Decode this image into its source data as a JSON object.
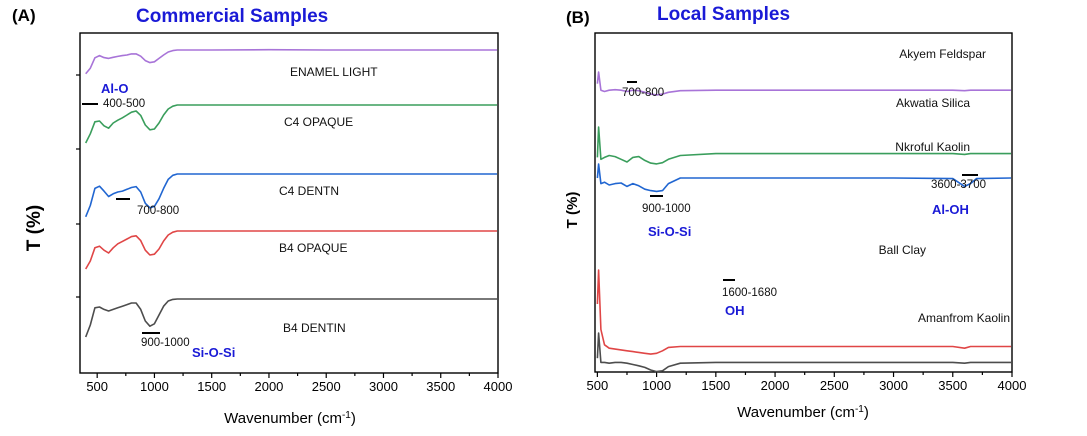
{
  "chart_data": [
    {
      "type": "line",
      "panel": "(A)",
      "title": "Commercial Samples",
      "xlabel": "Wavenumber (cm",
      "xlabel_sup": "-1",
      "xlabel_end": ")",
      "ylabel": "T (%)",
      "xlim": [
        350,
        4000
      ],
      "xticks": [
        500,
        1000,
        1500,
        2000,
        2500,
        3000,
        3500,
        4000
      ],
      "xticklabels": [
        "500",
        "1000",
        "1500",
        "2000",
        "2500",
        "3000",
        "3500",
        "4000"
      ],
      "series": [
        {
          "name": "ENAMEL LIGHT",
          "color": "#a874d8",
          "x": [
            400,
            440,
            480,
            520,
            560,
            600,
            640,
            680,
            720,
            760,
            800,
            840,
            880,
            920,
            960,
            1000,
            1040,
            1080,
            1120,
            1160,
            1200,
            1250,
            1300,
            1500,
            2000,
            2500,
            3000,
            3500,
            4000
          ],
          "y": [
            0.15,
            0.35,
            0.72,
            0.8,
            0.73,
            0.7,
            0.74,
            0.77,
            0.8,
            0.82,
            0.86,
            0.86,
            0.78,
            0.62,
            0.55,
            0.58,
            0.7,
            0.82,
            0.93,
            0.98,
            1.0,
            1.0,
            1.0,
            1.0,
            1.01,
            1.0,
            1.0,
            1.0,
            1.0
          ]
        },
        {
          "name": "C4 OPAQUE",
          "color": "#3a9e5c",
          "x": [
            400,
            440,
            480,
            520,
            560,
            600,
            640,
            680,
            720,
            760,
            800,
            840,
            880,
            920,
            960,
            1000,
            1040,
            1080,
            1120,
            1160,
            1200,
            1250,
            1300,
            1500,
            2000,
            2500,
            3000,
            3500,
            4000
          ],
          "y": [
            0.05,
            0.28,
            0.58,
            0.6,
            0.48,
            0.42,
            0.55,
            0.62,
            0.68,
            0.75,
            0.82,
            0.85,
            0.74,
            0.5,
            0.38,
            0.4,
            0.55,
            0.75,
            0.9,
            0.97,
            1.0,
            1.0,
            1.0,
            1.0,
            1.0,
            1.0,
            1.0,
            1.0,
            1.0
          ]
        },
        {
          "name": "C4 DENTN",
          "color": "#2166d1",
          "x": [
            400,
            440,
            480,
            520,
            560,
            600,
            640,
            680,
            720,
            760,
            800,
            840,
            880,
            920,
            960,
            1000,
            1040,
            1080,
            1120,
            1160,
            1200,
            1250,
            1300,
            1500,
            2000,
            2500,
            3000,
            3500,
            4000
          ],
          "y": [
            0.05,
            0.3,
            0.68,
            0.73,
            0.62,
            0.5,
            0.56,
            0.6,
            0.62,
            0.66,
            0.7,
            0.72,
            0.6,
            0.35,
            0.25,
            0.28,
            0.45,
            0.68,
            0.88,
            0.97,
            1.0,
            1.0,
            1.0,
            1.0,
            1.0,
            1.0,
            1.0,
            1.0,
            1.0
          ]
        },
        {
          "name": "B4 OPAQUE",
          "color": "#e04646",
          "x": [
            400,
            440,
            480,
            520,
            560,
            600,
            640,
            680,
            720,
            760,
            800,
            840,
            880,
            920,
            960,
            1000,
            1040,
            1080,
            1120,
            1160,
            1200,
            1250,
            1300,
            1500,
            2000,
            2500,
            3000,
            3500,
            4000
          ],
          "y": [
            0.05,
            0.25,
            0.58,
            0.62,
            0.52,
            0.45,
            0.58,
            0.68,
            0.74,
            0.8,
            0.86,
            0.88,
            0.76,
            0.52,
            0.4,
            0.42,
            0.55,
            0.75,
            0.9,
            0.97,
            1.0,
            1.0,
            1.0,
            1.0,
            1.0,
            1.0,
            1.0,
            1.0,
            1.0
          ]
        },
        {
          "name": "B4 DENTIN",
          "color": "#4d4d4d",
          "x": [
            400,
            440,
            480,
            520,
            560,
            600,
            640,
            680,
            720,
            760,
            800,
            840,
            880,
            920,
            960,
            1000,
            1040,
            1080,
            1120,
            1160,
            1200,
            1250,
            1300,
            1500,
            2000,
            2500,
            3000,
            3500,
            4000
          ],
          "y": [
            0.05,
            0.35,
            0.78,
            0.8,
            0.74,
            0.7,
            0.74,
            0.78,
            0.82,
            0.86,
            0.9,
            0.9,
            0.74,
            0.45,
            0.32,
            0.38,
            0.6,
            0.82,
            0.95,
            0.99,
            1.0,
            1.0,
            1.0,
            1.0,
            1.0,
            1.0,
            1.0,
            1.0,
            1.0
          ]
        }
      ],
      "annotations": [
        {
          "text": "Al-O",
          "style": "blue",
          "x": 450
        },
        {
          "text": "400-500",
          "style": "plain",
          "x": 450
        },
        {
          "text": "700-800",
          "style": "plain",
          "x": 750
        },
        {
          "text": "900-1000",
          "style": "plain",
          "x": 950
        },
        {
          "text": "Si-O-Si",
          "style": "blue",
          "x": 1250
        }
      ]
    },
    {
      "type": "line",
      "panel": "(B)",
      "title": "Local Samples",
      "xlabel": "Wavenumber (cm",
      "xlabel_sup": "-1",
      "xlabel_end": ")",
      "ylabel": "T (%)",
      "xlim": [
        480,
        4000
      ],
      "xticks": [
        500,
        1000,
        1500,
        2000,
        2500,
        3000,
        3500,
        4000
      ],
      "xticklabels": [
        "500",
        "1000",
        "1500",
        "2000",
        "2500",
        "3000",
        "3500",
        "4000"
      ],
      "series": [
        {
          "name": "Akyem Feldspar",
          "color": "#a874d8",
          "x": [
            500,
            510,
            530,
            560,
            600,
            650,
            700,
            750,
            800,
            850,
            900,
            950,
            1000,
            1050,
            1100,
            1200,
            1500,
            2000,
            2500,
            3000,
            3500,
            3600,
            3650,
            3700,
            4000
          ],
          "y": [
            0.55,
            1.0,
            0.3,
            0.25,
            0.3,
            0.32,
            0.3,
            0.25,
            0.3,
            0.28,
            0.22,
            0.15,
            0.12,
            0.15,
            0.22,
            0.28,
            0.3,
            0.3,
            0.3,
            0.3,
            0.3,
            0.28,
            0.3,
            0.3,
            0.3
          ]
        },
        {
          "name": "Akwatia Silica",
          "color": "#3a9e5c",
          "x": [
            500,
            510,
            530,
            560,
            600,
            650,
            700,
            750,
            800,
            850,
            900,
            950,
            1000,
            1050,
            1100,
            1200,
            1500,
            2000,
            2500,
            3000,
            3500,
            3600,
            3650,
            3700,
            4000
          ],
          "y": [
            0.2,
            1.0,
            0.15,
            0.2,
            0.25,
            0.22,
            0.15,
            0.08,
            0.2,
            0.22,
            0.12,
            0.05,
            0.03,
            0.06,
            0.15,
            0.25,
            0.3,
            0.3,
            0.3,
            0.3,
            0.3,
            0.28,
            0.3,
            0.3,
            0.3
          ]
        },
        {
          "name": "Nkroful Kaolin",
          "color": "#2166d1",
          "x": [
            500,
            510,
            530,
            560,
            600,
            650,
            700,
            750,
            800,
            850,
            900,
            950,
            1000,
            1050,
            1100,
            1200,
            1500,
            2000,
            2500,
            3000,
            3500,
            3600,
            3650,
            3700,
            4000
          ],
          "y": [
            0.5,
            1.0,
            0.3,
            0.35,
            0.25,
            0.3,
            0.32,
            0.2,
            0.3,
            0.22,
            0.1,
            0.05,
            0.02,
            0.05,
            0.3,
            0.5,
            0.5,
            0.5,
            0.5,
            0.5,
            0.48,
            0.2,
            0.3,
            0.48,
            0.5
          ]
        },
        {
          "name": "Ball Clay",
          "color": "#e04646",
          "x": [
            500,
            510,
            530,
            560,
            600,
            650,
            700,
            750,
            800,
            850,
            900,
            950,
            1000,
            1050,
            1100,
            1200,
            1500,
            2000,
            2500,
            3000,
            3500,
            3600,
            3650,
            3700,
            4000
          ],
          "y": [
            0.6,
            1.0,
            0.3,
            0.12,
            0.08,
            0.07,
            0.06,
            0.05,
            0.04,
            0.03,
            0.02,
            0.01,
            0.02,
            0.05,
            0.09,
            0.1,
            0.1,
            0.1,
            0.1,
            0.1,
            0.1,
            0.08,
            0.1,
            0.1,
            0.1
          ]
        },
        {
          "name": "Amanfrom Kaolin",
          "color": "#4d4d4d",
          "x": [
            500,
            510,
            530,
            560,
            600,
            650,
            700,
            750,
            800,
            850,
            900,
            950,
            1000,
            1050,
            1100,
            1200,
            1500,
            2000,
            2500,
            3000,
            3500,
            3600,
            3650,
            3700,
            4000
          ],
          "y": [
            0.4,
            1.0,
            0.3,
            0.3,
            0.28,
            0.3,
            0.3,
            0.28,
            0.25,
            0.22,
            0.18,
            0.12,
            0.08,
            0.1,
            0.2,
            0.28,
            0.3,
            0.3,
            0.3,
            0.3,
            0.3,
            0.28,
            0.3,
            0.3,
            0.3
          ]
        }
      ],
      "annotations": [
        {
          "text": "700-800",
          "style": "plain",
          "x": 750
        },
        {
          "text": "900-1000",
          "style": "plain",
          "x": 950
        },
        {
          "text": "Si-O-Si",
          "style": "blue",
          "x": 950
        },
        {
          "text": "1600-1680",
          "style": "plain",
          "x": 1640
        },
        {
          "text": "OH",
          "style": "blue",
          "x": 1640
        },
        {
          "text": "3600-3700",
          "style": "plain",
          "x": 3650
        },
        {
          "text": "Al-OH",
          "style": "blue",
          "x": 3650
        }
      ]
    }
  ]
}
